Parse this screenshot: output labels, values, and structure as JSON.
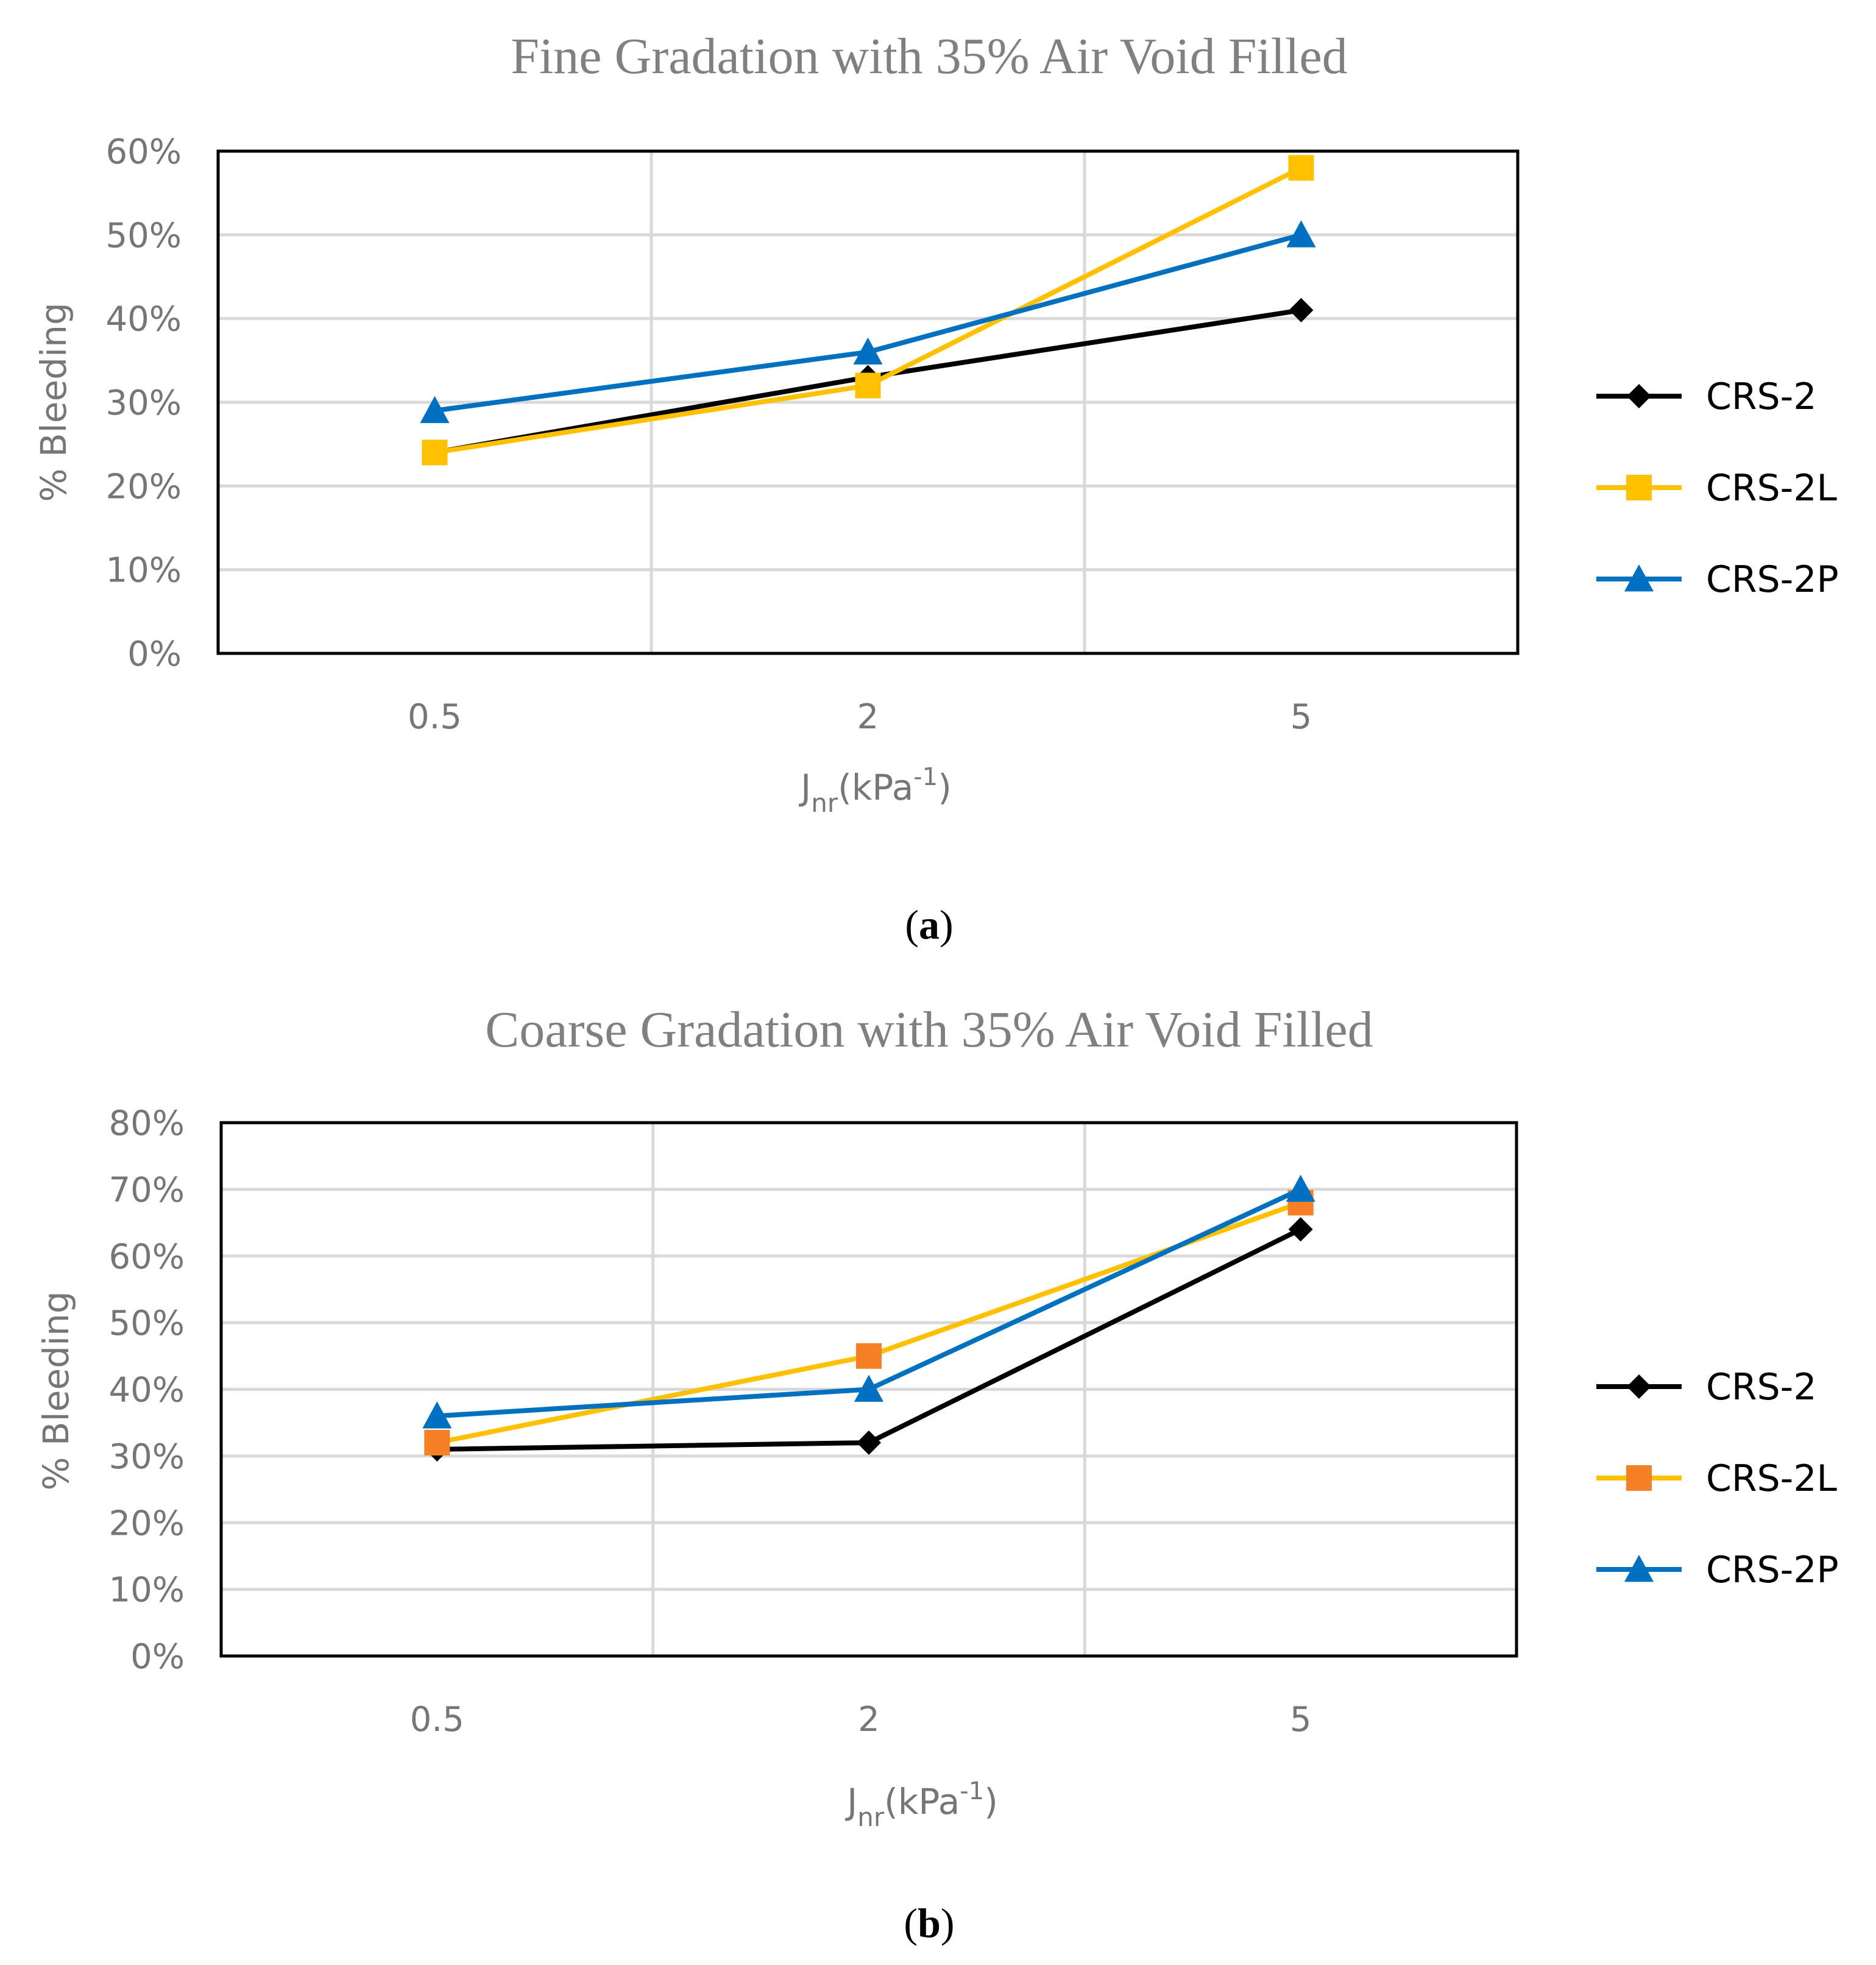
{
  "chart_data": [
    {
      "type": "line",
      "title": "Fine Gradation with 35% Air Void Filled",
      "xlabel_main": "J",
      "xlabel_sub": "nr",
      "xlabel_unit": "(kPa",
      "xlabel_exp": "-1",
      "xlabel_close": ")",
      "ylabel": "% Bleeding",
      "categories": [
        "0.5",
        "2",
        "5"
      ],
      "ylim": [
        0,
        60
      ],
      "yticks": [
        "0%",
        "10%",
        "20%",
        "30%",
        "40%",
        "50%",
        "60%"
      ],
      "grid": true,
      "legend_position": "right",
      "caption_open": "(",
      "caption_letter": "a",
      "caption_close": ")",
      "series": [
        {
          "name": "CRS-2",
          "values": [
            24,
            33,
            41
          ],
          "color": "#000000",
          "marker_color": "#000000",
          "marker": "diamond"
        },
        {
          "name": "CRS-2L",
          "values": [
            24,
            32,
            58
          ],
          "color": "#FFC000",
          "marker_color": "#FFC000",
          "marker": "square"
        },
        {
          "name": "CRS-2P",
          "values": [
            29,
            36,
            50
          ],
          "color": "#0070C0",
          "marker_color": "#0070C0",
          "marker": "triangle"
        }
      ]
    },
    {
      "type": "line",
      "title": "Coarse Gradation with 35% Air Void Filled",
      "xlabel_main": "J",
      "xlabel_sub": "nr",
      "xlabel_unit": "(kPa",
      "xlabel_exp": "-1",
      "xlabel_close": ")",
      "ylabel": "% Bleeding",
      "categories": [
        "0.5",
        "2",
        "5"
      ],
      "ylim": [
        0,
        80
      ],
      "yticks": [
        "0%",
        "10%",
        "20%",
        "30%",
        "40%",
        "50%",
        "60%",
        "70%",
        "80%"
      ],
      "grid": true,
      "legend_position": "right",
      "caption_open": "(",
      "caption_letter": "b",
      "caption_close": ")",
      "series": [
        {
          "name": "CRS-2",
          "values": [
            31,
            32,
            64
          ],
          "color": "#000000",
          "marker_color": "#000000",
          "marker": "diamond"
        },
        {
          "name": "CRS-2L",
          "values": [
            32,
            45,
            68
          ],
          "color": "#FFC000",
          "marker_color": "#F58026",
          "marker": "square"
        },
        {
          "name": "CRS-2P",
          "values": [
            36,
            40,
            70
          ],
          "color": "#0070C0",
          "marker_color": "#0070C0",
          "marker": "triangle"
        }
      ]
    }
  ]
}
